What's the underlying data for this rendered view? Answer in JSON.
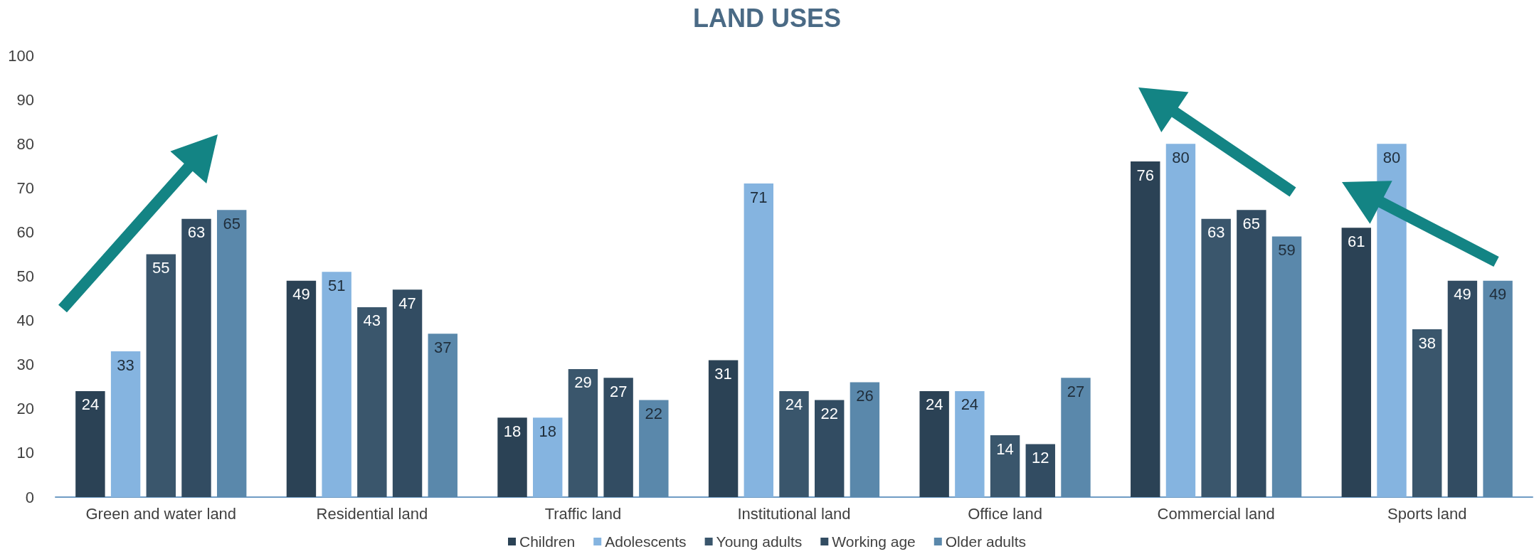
{
  "chart_data": {
    "type": "bar",
    "title": "LAND USES",
    "categories": [
      "Green and water land",
      "Residential land",
      "Traffic land",
      "Institutional land",
      "Office land",
      "Commercial land",
      "Sports land"
    ],
    "series": [
      {
        "name": "Children",
        "color": "#2b4255",
        "values": [
          24,
          49,
          18,
          31,
          24,
          76,
          61
        ]
      },
      {
        "name": "Adolescents",
        "color": "#85b4e0",
        "values": [
          33,
          51,
          18,
          71,
          24,
          80,
          80
        ]
      },
      {
        "name": "Young adults",
        "color": "#3a566c",
        "values": [
          55,
          43,
          29,
          24,
          14,
          63,
          38
        ]
      },
      {
        "name": "Working age",
        "color": "#324c62",
        "values": [
          63,
          47,
          27,
          22,
          12,
          65,
          49
        ]
      },
      {
        "name": "Older adults",
        "color": "#5a88ab",
        "values": [
          65,
          37,
          22,
          26,
          27,
          59,
          49
        ]
      }
    ],
    "ylim": [
      0,
      100
    ],
    "yticks": [
      0,
      10,
      20,
      30,
      40,
      50,
      60,
      70,
      80,
      90,
      100
    ],
    "grid": false,
    "legend": "bottom",
    "data_labels": true
  }
}
